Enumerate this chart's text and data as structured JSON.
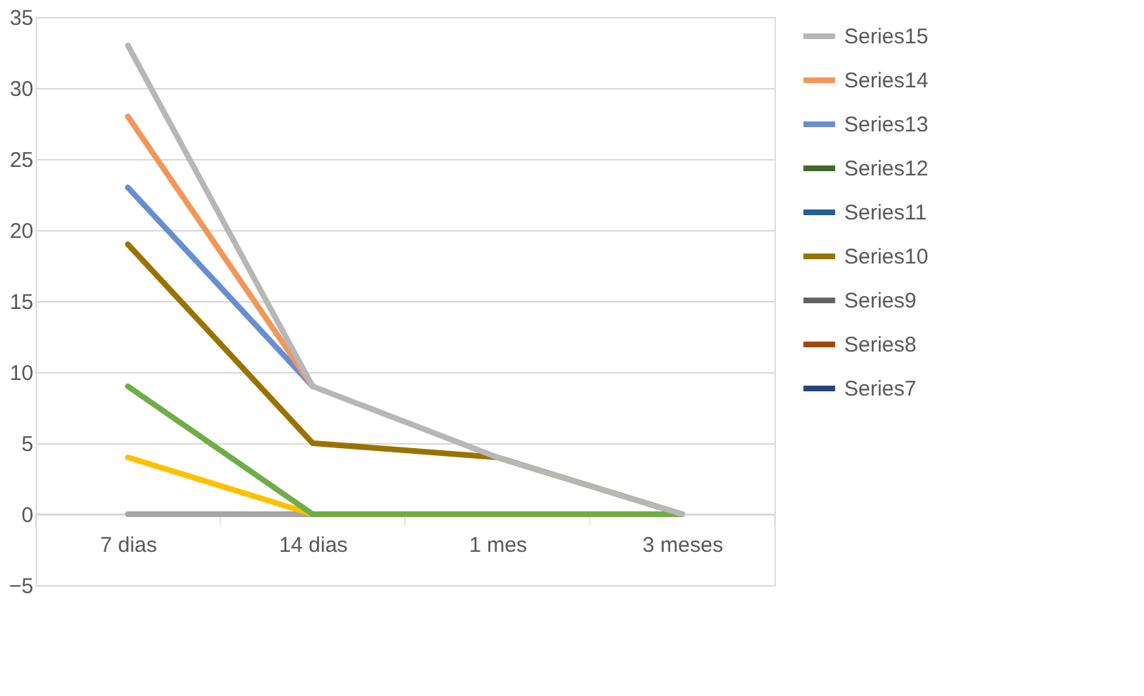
{
  "chart_data": {
    "type": "line",
    "categories": [
      "7 dias",
      "14 dias",
      "1 mes",
      "3 meses"
    ],
    "series": [
      {
        "color": "#a5a5a5",
        "values": [
          0,
          0,
          null,
          null
        ]
      },
      {
        "color": "#ffc000",
        "values": [
          4,
          0,
          null,
          null
        ]
      },
      {
        "color": "#70ad47",
        "values": [
          9,
          0,
          0,
          0
        ]
      },
      {
        "name": "Series7",
        "color": "#264478",
        "values": [
          null,
          null,
          null,
          null
        ]
      },
      {
        "name": "Series8",
        "color": "#9e480e",
        "values": [
          null,
          null,
          null,
          null
        ]
      },
      {
        "name": "Series9",
        "color": "#636363",
        "values": [
          null,
          null,
          null,
          null
        ]
      },
      {
        "name": "Series10",
        "color": "#997300",
        "values": [
          19,
          5,
          4,
          0
        ]
      },
      {
        "name": "Series11",
        "color": "#255e91",
        "values": [
          null,
          null,
          null,
          null
        ]
      },
      {
        "name": "Series12",
        "color": "#43682b",
        "values": [
          null,
          null,
          null,
          null
        ]
      },
      {
        "name": "Series13",
        "color": "#698ed0",
        "values": [
          23,
          9,
          null,
          null
        ]
      },
      {
        "name": "Series14",
        "color": "#f1975a",
        "values": [
          28,
          9,
          null,
          null
        ]
      },
      {
        "name": "Series15",
        "color": "#b7b7b7",
        "values": [
          33,
          9,
          4,
          0
        ]
      }
    ],
    "ylim": [
      -5,
      35
    ],
    "yticks": [
      -5,
      0,
      5,
      10,
      15,
      20,
      25,
      30,
      35
    ],
    "grid": "y",
    "legend": "right",
    "marker": "none",
    "line_style": "solid"
  }
}
